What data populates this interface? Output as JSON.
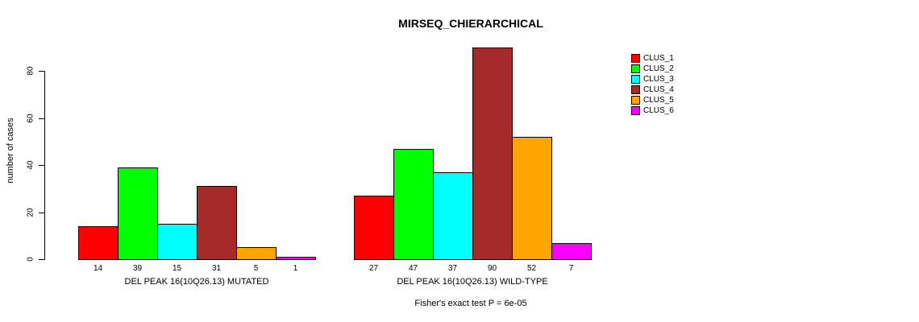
{
  "title": "MIRSEQ_CHIERARCHICAL",
  "chart_data": {
    "type": "bar",
    "title": "MIRSEQ_CHIERARCHICAL",
    "ylabel": "number of cases",
    "xlabel": "",
    "annotation": "Fisher's exact test P = 6e-05",
    "grid": false,
    "legend_position": "top-right",
    "ylim": [
      0,
      92
    ],
    "yticks": [
      0,
      20,
      40,
      60,
      80
    ],
    "series": [
      {
        "name": "CLUS_1",
        "color": "#FF0000"
      },
      {
        "name": "CLUS_2",
        "color": "#00FF00"
      },
      {
        "name": "CLUS_3",
        "color": "#00FFFF"
      },
      {
        "name": "CLUS_4",
        "color": "#A52A2A"
      },
      {
        "name": "CLUS_5",
        "color": "#FFA500"
      },
      {
        "name": "CLUS_6",
        "color": "#FF00FF"
      }
    ],
    "groups": [
      {
        "label": "DEL PEAK 16(10Q26.13) MUTATED",
        "values": [
          14,
          39,
          15,
          31,
          5,
          1
        ]
      },
      {
        "label": "DEL PEAK 16(10Q26.13) WILD-TYPE",
        "values": [
          27,
          47,
          37,
          90,
          52,
          7
        ]
      }
    ]
  }
}
